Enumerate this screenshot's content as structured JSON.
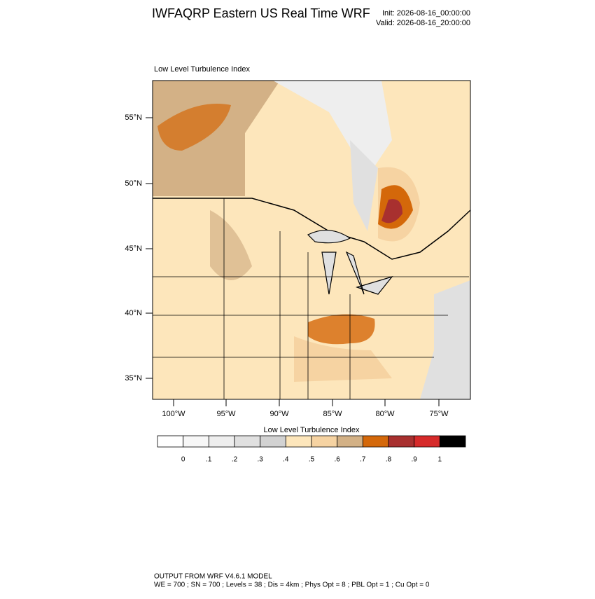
{
  "header": {
    "title": "IWFAQRP Eastern US Real Time WRF",
    "init": "Init: 2026-08-16_00:00:00",
    "valid": "Valid: 2026-08-16_20:00:00"
  },
  "map": {
    "subtitle": "Low Level Turbulence Index",
    "lat_labels": [
      "55°N",
      "50°N",
      "45°N",
      "40°N",
      "35°N"
    ],
    "lon_labels": [
      "100°W",
      "95°W",
      "90°W",
      "85°W",
      "80°W",
      "75°W"
    ]
  },
  "colorbar": {
    "title": "Low Level Turbulence Index",
    "labels": [
      "0",
      ".1",
      ".2",
      ".3",
      ".4",
      ".5",
      ".6",
      ".7",
      ".8",
      ".9",
      "1"
    ],
    "colors": [
      "#ffffff",
      "#f7f7f7",
      "#eeeeee",
      "#e0e0e0",
      "#d2d2d2",
      "#fde6bb",
      "#f6d3a2",
      "#d3b186",
      "#d4680a",
      "#a8302f",
      "#d62a2a",
      "#000000"
    ]
  },
  "footer": {
    "line1": "OUTPUT FROM WRF V4.6.1 MODEL",
    "line2": "WE = 700 ; SN = 700 ; Levels = 38 ; Dis = 4km ; Phys Opt = 8 ; PBL Opt = 1 ; Cu Opt = 0"
  }
}
